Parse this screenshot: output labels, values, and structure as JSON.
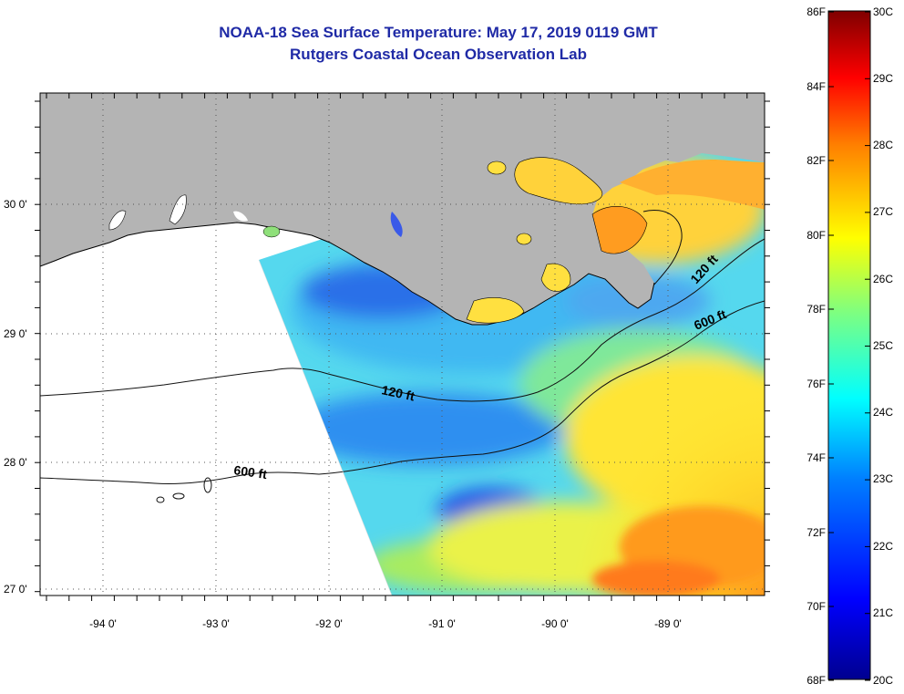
{
  "header": {
    "title": "NOAA-18 Sea Surface Temperature:  May 17, 2019 0119 GMT",
    "subtitle": "Rutgers Coastal Ocean Observation Lab"
  },
  "map": {
    "lon_ticks": [
      {
        "value": -94,
        "label": "-94 0'"
      },
      {
        "value": -93,
        "label": "-93 0'"
      },
      {
        "value": -92,
        "label": "-92 0'"
      },
      {
        "value": -91,
        "label": "-91 0'"
      },
      {
        "value": -90,
        "label": "-90 0'"
      },
      {
        "value": -89,
        "label": "-89 0'"
      }
    ],
    "lat_ticks": [
      {
        "value": 30,
        "label": "30 0'"
      },
      {
        "value": 29,
        "label": "29 0'"
      },
      {
        "value": 28,
        "label": "28 0'"
      },
      {
        "value": 27,
        "label": "27 0'"
      }
    ],
    "contour_labels": [
      {
        "label": "120 ft",
        "kind": "left"
      },
      {
        "label": "600 ft",
        "kind": "left"
      },
      {
        "label": "120 ft",
        "kind": "right"
      },
      {
        "label": "600 ft",
        "kind": "right"
      }
    ],
    "land_color": "#b4b4b4"
  },
  "colorbar": {
    "f_labels": [
      "86F",
      "84F",
      "82F",
      "80F",
      "78F",
      "76F",
      "74F",
      "72F",
      "70F",
      "68F"
    ],
    "c_labels": [
      "30C",
      "29C",
      "28C",
      "27C",
      "26C",
      "25C",
      "24C",
      "23C",
      "22C",
      "21C",
      "20C"
    ],
    "min_c": 20,
    "max_c": 30
  }
}
